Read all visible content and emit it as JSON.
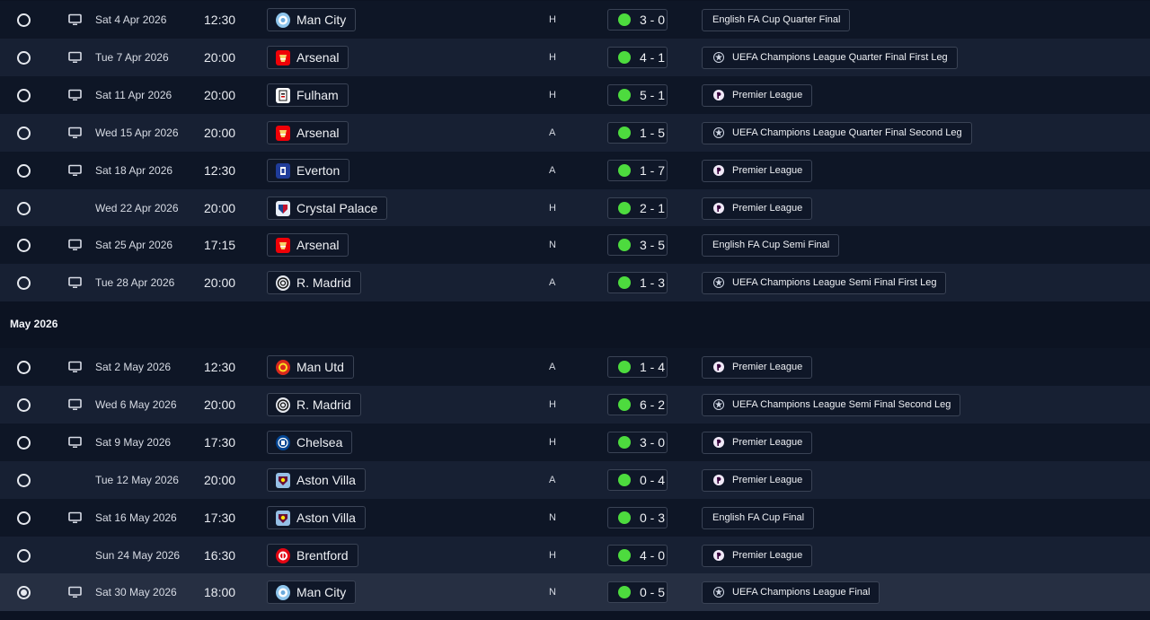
{
  "month_header": "May 2026",
  "colors": {
    "win": "#4ddb3e",
    "selected_row": "#262f42"
  },
  "fixtures": [
    {
      "date": "Sat 4 Apr 2026",
      "time": "12:30",
      "team": "Man City",
      "crest": "man-city-crest",
      "venue": "H",
      "score": "3 - 0",
      "competition": "English FA Cup Quarter Final",
      "comp_logo": "none",
      "tv": true,
      "selected": false
    },
    {
      "date": "Tue 7 Apr 2026",
      "time": "20:00",
      "team": "Arsenal",
      "crest": "arsenal-crest",
      "venue": "H",
      "score": "4 - 1",
      "competition": "UEFA Champions League Quarter Final First Leg",
      "comp_logo": "ucl",
      "tv": true,
      "selected": false
    },
    {
      "date": "Sat 11 Apr 2026",
      "time": "20:00",
      "team": "Fulham",
      "crest": "fulham-crest",
      "venue": "H",
      "score": "5 - 1",
      "competition": "Premier League",
      "comp_logo": "pl",
      "tv": true,
      "selected": false
    },
    {
      "date": "Wed 15 Apr 2026",
      "time": "20:00",
      "team": "Arsenal",
      "crest": "arsenal-crest",
      "venue": "A",
      "score": "1 - 5",
      "competition": "UEFA Champions League Quarter Final Second Leg",
      "comp_logo": "ucl",
      "tv": true,
      "selected": false
    },
    {
      "date": "Sat 18 Apr 2026",
      "time": "12:30",
      "team": "Everton",
      "crest": "everton-crest",
      "venue": "A",
      "score": "1 - 7",
      "competition": "Premier League",
      "comp_logo": "pl",
      "tv": true,
      "selected": false
    },
    {
      "date": "Wed 22 Apr 2026",
      "time": "20:00",
      "team": "Crystal Palace",
      "crest": "crystal-palace-crest",
      "venue": "H",
      "score": "2 - 1",
      "competition": "Premier League",
      "comp_logo": "pl",
      "tv": false,
      "selected": false
    },
    {
      "date": "Sat 25 Apr 2026",
      "time": "17:15",
      "team": "Arsenal",
      "crest": "arsenal-crest",
      "venue": "N",
      "score": "3 - 5",
      "competition": "English FA Cup Semi Final",
      "comp_logo": "none",
      "tv": true,
      "selected": false
    },
    {
      "date": "Tue 28 Apr 2026",
      "time": "20:00",
      "team": "R. Madrid",
      "crest": "real-madrid-crest",
      "venue": "A",
      "score": "1 - 3",
      "competition": "UEFA Champions League Semi Final First Leg",
      "comp_logo": "ucl",
      "tv": true,
      "selected": false
    },
    {
      "date": "Sat 2 May 2026",
      "time": "12:30",
      "team": "Man Utd",
      "crest": "man-utd-crest",
      "venue": "A",
      "score": "1 - 4",
      "competition": "Premier League",
      "comp_logo": "pl",
      "tv": true,
      "selected": false
    },
    {
      "date": "Wed 6 May 2026",
      "time": "20:00",
      "team": "R. Madrid",
      "crest": "real-madrid-crest",
      "venue": "H",
      "score": "6 - 2",
      "competition": "UEFA Champions League Semi Final Second Leg",
      "comp_logo": "ucl",
      "tv": true,
      "selected": false
    },
    {
      "date": "Sat 9 May 2026",
      "time": "17:30",
      "team": "Chelsea",
      "crest": "chelsea-crest",
      "venue": "H",
      "score": "3 - 0",
      "competition": "Premier League",
      "comp_logo": "pl",
      "tv": true,
      "selected": false
    },
    {
      "date": "Tue 12 May 2026",
      "time": "20:00",
      "team": "Aston Villa",
      "crest": "aston-villa-crest",
      "venue": "A",
      "score": "0 - 4",
      "competition": "Premier League",
      "comp_logo": "pl",
      "tv": false,
      "selected": false
    },
    {
      "date": "Sat 16 May 2026",
      "time": "17:30",
      "team": "Aston Villa",
      "crest": "aston-villa-crest",
      "venue": "N",
      "score": "0 - 3",
      "competition": "English FA Cup Final",
      "comp_logo": "none",
      "tv": true,
      "selected": false
    },
    {
      "date": "Sun 24 May 2026",
      "time": "16:30",
      "team": "Brentford",
      "crest": "brentford-crest",
      "venue": "H",
      "score": "4 - 0",
      "competition": "Premier League",
      "comp_logo": "pl",
      "tv": false,
      "selected": false
    },
    {
      "date": "Sat 30 May 2026",
      "time": "18:00",
      "team": "Man City",
      "crest": "man-city-crest",
      "venue": "N",
      "score": "0 - 5",
      "competition": "UEFA Champions League Final",
      "comp_logo": "ucl",
      "tv": true,
      "selected": true
    }
  ]
}
